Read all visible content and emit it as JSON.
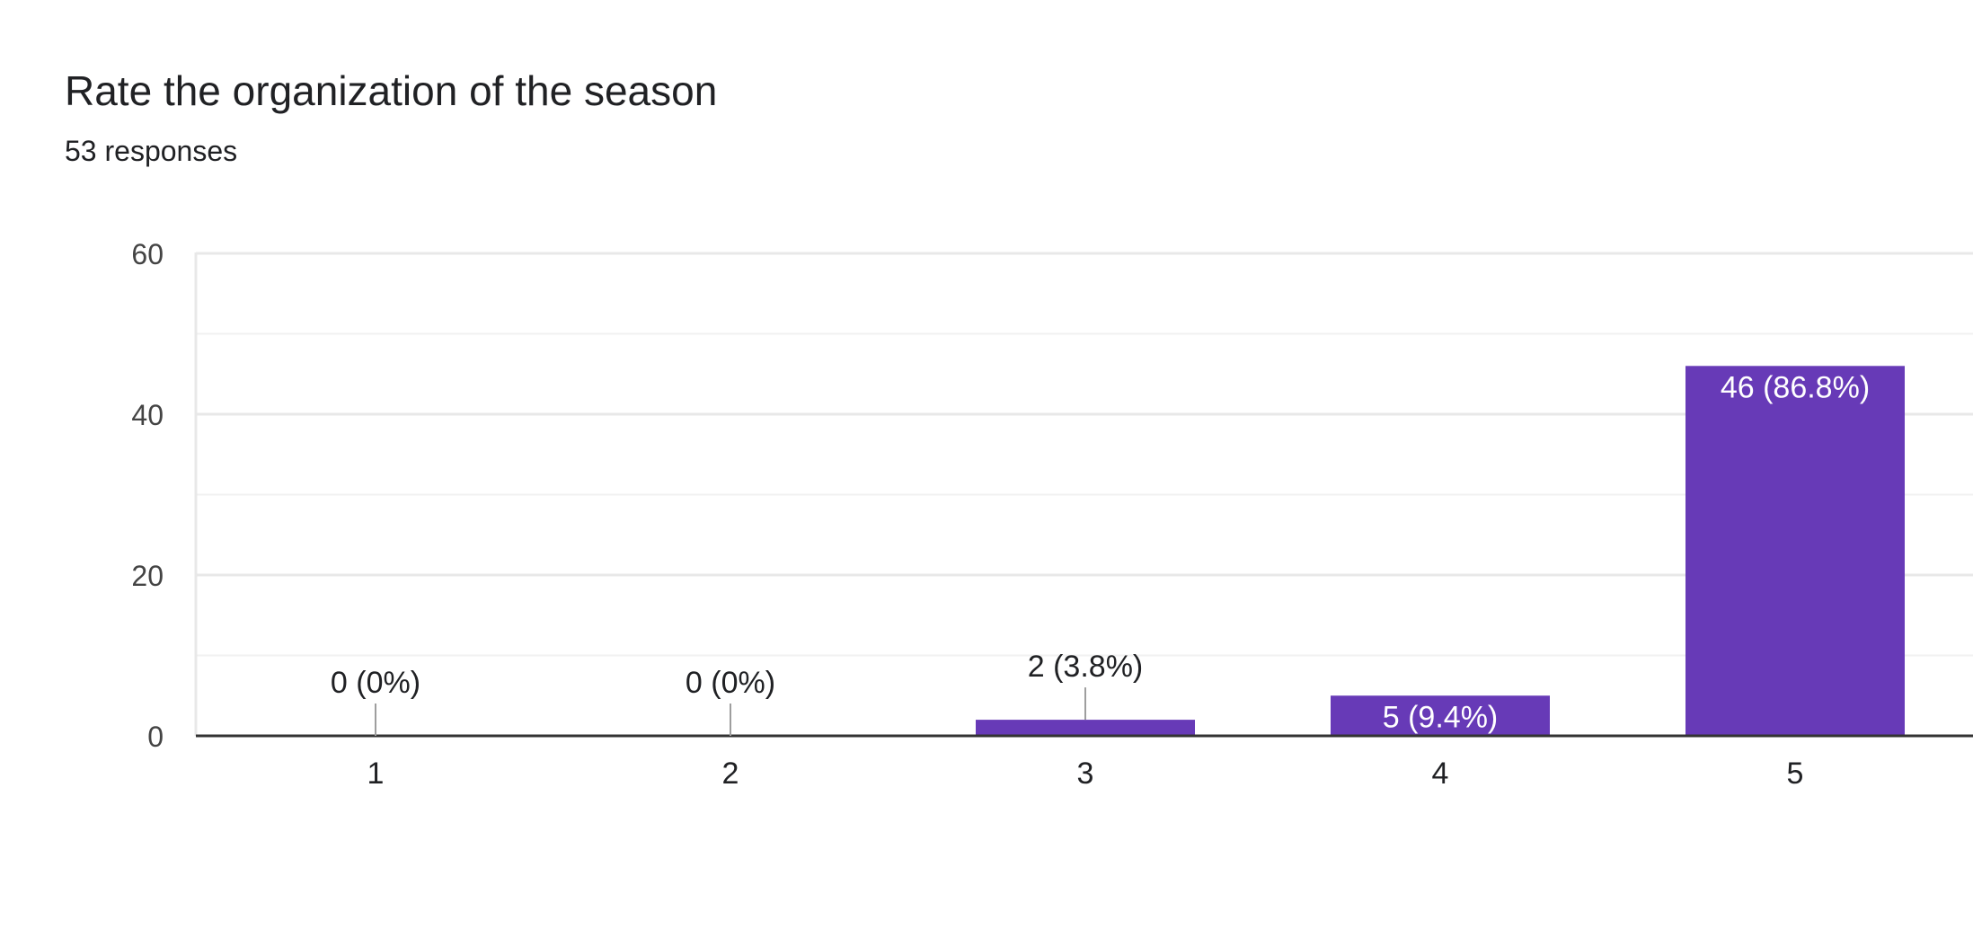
{
  "question": {
    "title": "Rate the organization of the season",
    "responses": "53 responses"
  },
  "colors": {
    "bar": "#673ab7",
    "grid": "#e8e8e8",
    "axis": "#333333",
    "text": "#202124",
    "bar_label_inside": "#ffffff",
    "leader": "#9e9e9e"
  },
  "chart_data": {
    "type": "bar",
    "categories": [
      "1",
      "2",
      "3",
      "4",
      "5"
    ],
    "values": [
      0,
      0,
      2,
      5,
      46
    ],
    "data_labels": [
      "0 (0%)",
      "0 (0%)",
      "2 (3.8%)",
      "5 (9.4%)",
      "46 (86.8%)"
    ],
    "title": "Rate the organization of the season",
    "subtitle": "53 responses",
    "xlabel": "",
    "ylabel": "",
    "ylim": [
      0,
      60
    ],
    "yticks": [
      0,
      20,
      40,
      60
    ],
    "grid": true
  }
}
